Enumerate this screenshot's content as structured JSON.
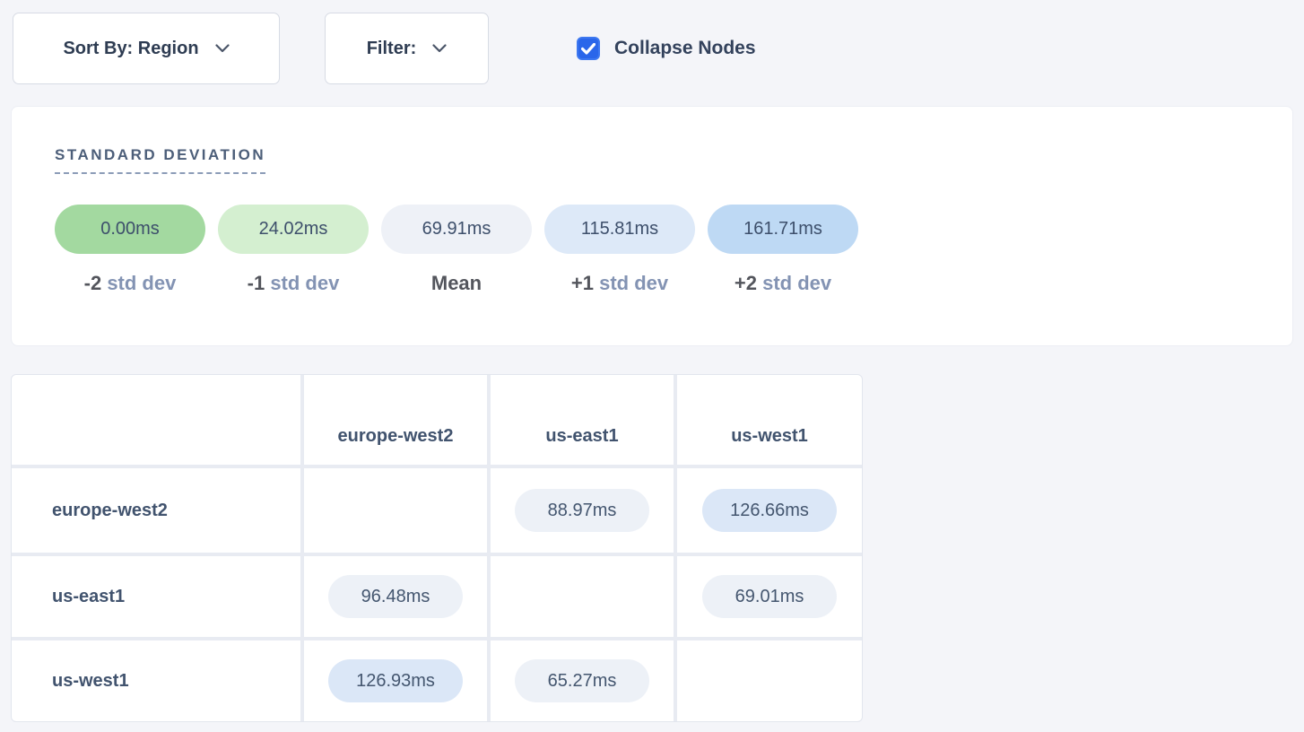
{
  "controls": {
    "sort_by_label": "Sort By: Region",
    "filter_label": "Filter:",
    "collapse_label": "Collapse Nodes",
    "collapse_checked": true
  },
  "colors": {
    "checkbox_blue": "#2a66ea",
    "page_background": "#f4f5f9",
    "grid_gap": "#e8ebf2"
  },
  "legend": {
    "title": "STANDARD DEVIATION",
    "items": [
      {
        "value": "0.00ms",
        "label_prefix": "-2",
        "label_suffix": "std dev",
        "color": "#a3d9a0"
      },
      {
        "value": "24.02ms",
        "label_prefix": "-1",
        "label_suffix": "std dev",
        "color": "#d4efd0"
      },
      {
        "value": "69.91ms",
        "label_prefix": "Mean",
        "label_suffix": "",
        "color": "#eef1f7"
      },
      {
        "value": "115.81ms",
        "label_prefix": "+1",
        "label_suffix": "std dev",
        "color": "#dde9f8"
      },
      {
        "value": "161.71ms",
        "label_prefix": "+2",
        "label_suffix": "std dev",
        "color": "#bed9f4"
      }
    ]
  },
  "matrix": {
    "columns": [
      "europe-west2",
      "us-east1",
      "us-west1"
    ],
    "rows": [
      {
        "label": "europe-west2",
        "cells": [
          null,
          {
            "value": "88.97ms",
            "color": "#edf1f7"
          },
          {
            "value": "126.66ms",
            "color": "#dbe7f7"
          }
        ]
      },
      {
        "label": "us-east1",
        "cells": [
          {
            "value": "96.48ms",
            "color": "#edf1f7"
          },
          null,
          {
            "value": "69.01ms",
            "color": "#edf1f7"
          }
        ]
      },
      {
        "label": "us-west1",
        "cells": [
          {
            "value": "126.93ms",
            "color": "#dbe7f7"
          },
          {
            "value": "65.27ms",
            "color": "#edf1f7"
          },
          null
        ]
      }
    ]
  }
}
